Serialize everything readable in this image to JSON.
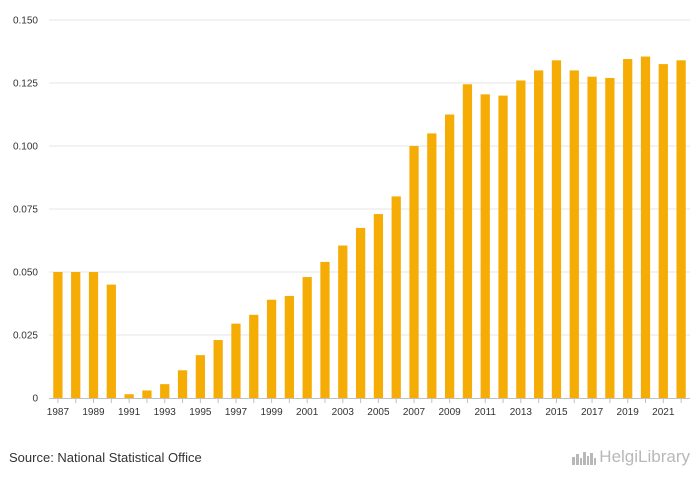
{
  "chart_data": {
    "type": "bar",
    "title": "",
    "xlabel": "",
    "ylabel": "",
    "ylim": [
      0,
      0.15
    ],
    "yticks": [
      0,
      0.025,
      0.05,
      0.075,
      0.1,
      0.125,
      0.15
    ],
    "ytick_labels": [
      "0",
      "0.025",
      "0.050",
      "0.075",
      "0.100",
      "0.125",
      "0.150"
    ],
    "grid": "horizontal",
    "bar_color": "#F5AC05",
    "categories": [
      1987,
      1988,
      1989,
      1990,
      1991,
      1992,
      1993,
      1994,
      1995,
      1996,
      1997,
      1998,
      1999,
      2000,
      2001,
      2002,
      2003,
      2004,
      2005,
      2006,
      2007,
      2008,
      2009,
      2010,
      2011,
      2012,
      2013,
      2014,
      2015,
      2016,
      2017,
      2018,
      2019,
      2020,
      2021,
      2022
    ],
    "x_tick_labels": [
      "1987",
      "1989",
      "1991",
      "1993",
      "1995",
      "1997",
      "1999",
      "2001",
      "2003",
      "2005",
      "2007",
      "2009",
      "2011",
      "2013",
      "2015",
      "2017",
      "2019",
      "2021"
    ],
    "values": [
      0.05,
      0.05,
      0.05,
      0.045,
      0.0015,
      0.003,
      0.0055,
      0.011,
      0.017,
      0.023,
      0.0295,
      0.033,
      0.039,
      0.0405,
      0.048,
      0.054,
      0.0605,
      0.0675,
      0.073,
      0.08,
      0.1,
      0.105,
      0.1125,
      0.1245,
      0.1205,
      0.12,
      0.126,
      0.13,
      0.134,
      0.13,
      0.1275,
      0.127,
      0.1345,
      0.1355,
      0.1325,
      0.134
    ]
  },
  "footer": {
    "source": "Source: National Statistical Office",
    "logo_text": "HelgiLibrary",
    "logo_icon": "city-skyline-icon"
  }
}
